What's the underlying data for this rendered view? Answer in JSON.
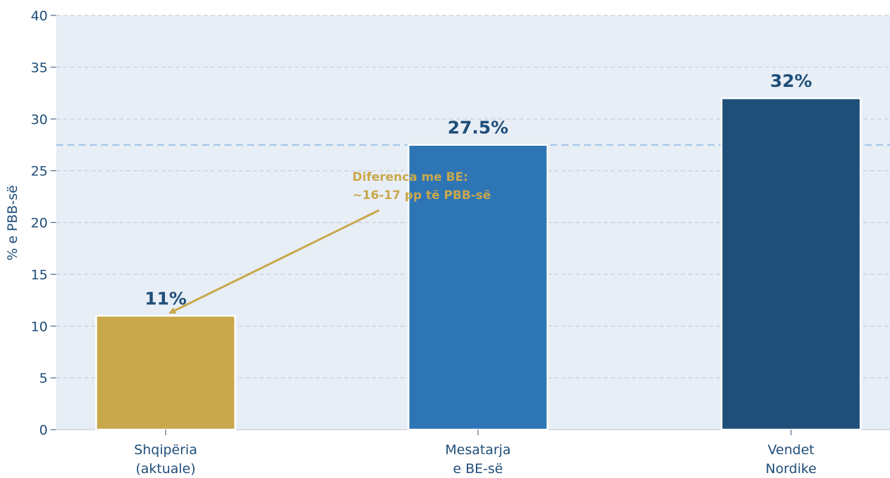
{
  "chart_data": {
    "type": "bar",
    "categories": [
      [
        "Shqipëria",
        "(aktuale)"
      ],
      [
        "Mesatarja",
        "e BE-së"
      ],
      [
        "Vendet",
        "Nordike"
      ]
    ],
    "values": [
      11,
      27.5,
      32
    ],
    "value_labels": [
      "11%",
      "27.5%",
      "32%"
    ],
    "bar_colors": [
      "#c9a84c",
      "#2e75b6",
      "#1f4e79"
    ],
    "ylabel": "% e PBB-së",
    "ylim": [
      0,
      40
    ],
    "yticks": [
      0,
      5,
      10,
      15,
      20,
      25,
      30,
      35,
      40
    ],
    "grid": true,
    "reference_line": {
      "value": 27.5,
      "color": "#9dc3e6"
    },
    "annotation": {
      "lines": [
        "Diferenca me BE:",
        "~16-17 pp të PBB-së"
      ],
      "arrow_to": {
        "category": 0,
        "value": 11
      },
      "color": "#c9a84c"
    },
    "colors": {
      "background": "#e8eef6",
      "text": "#1f4e79",
      "grid": "#c8cfdb"
    }
  }
}
